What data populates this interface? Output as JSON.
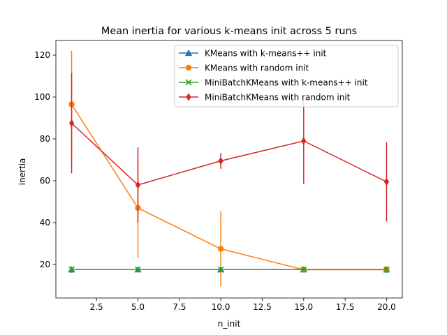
{
  "chart_data": {
    "type": "line",
    "title": "Mean inertia for various k-means init across 5 runs",
    "xlabel": "n_init",
    "ylabel": "inertia",
    "xlim": [
      0.05,
      20.95
    ],
    "ylim": [
      4,
      127
    ],
    "xticks": [
      2.5,
      5.0,
      7.5,
      10.0,
      12.5,
      15.0,
      17.5,
      20.0
    ],
    "xtick_labels": [
      "2.5",
      "5.0",
      "7.5",
      "10.0",
      "12.5",
      "15.0",
      "17.5",
      "20.0"
    ],
    "yticks": [
      20,
      40,
      60,
      80,
      100,
      120
    ],
    "ytick_labels": [
      "20",
      "40",
      "60",
      "80",
      "100",
      "120"
    ],
    "x": [
      1,
      5,
      10,
      15,
      20
    ],
    "legend_position": "upper-right",
    "series": [
      {
        "name": "KMeans with k-means++ init",
        "color": "#1f77b4",
        "marker": "triangle-up",
        "values": [
          17.6,
          17.6,
          17.6,
          17.6,
          17.6
        ],
        "errors": [
          1.6,
          1.0,
          1.0,
          1.0,
          1.6
        ]
      },
      {
        "name": "KMeans with random init",
        "color": "#ff7f0e",
        "marker": "circle",
        "values": [
          96.5,
          47.0,
          27.5,
          17.5,
          17.5
        ],
        "errors": [
          25.5,
          23.8,
          18.0,
          1.0,
          1.0
        ]
      },
      {
        "name": "MiniBatchKMeans with k-means++ init",
        "color": "#2ca02c",
        "marker": "x",
        "values": [
          17.6,
          17.6,
          17.6,
          17.6,
          17.6
        ],
        "errors": [
          1.6,
          1.0,
          1.0,
          1.0,
          1.6
        ]
      },
      {
        "name": "MiniBatchKMeans with random init",
        "color": "#d62728",
        "marker": "diamond",
        "values": [
          87.5,
          58.0,
          69.5,
          79.0,
          59.5
        ],
        "errors": [
          24.0,
          18.0,
          3.8,
          20.5,
          19.0
        ]
      }
    ]
  }
}
